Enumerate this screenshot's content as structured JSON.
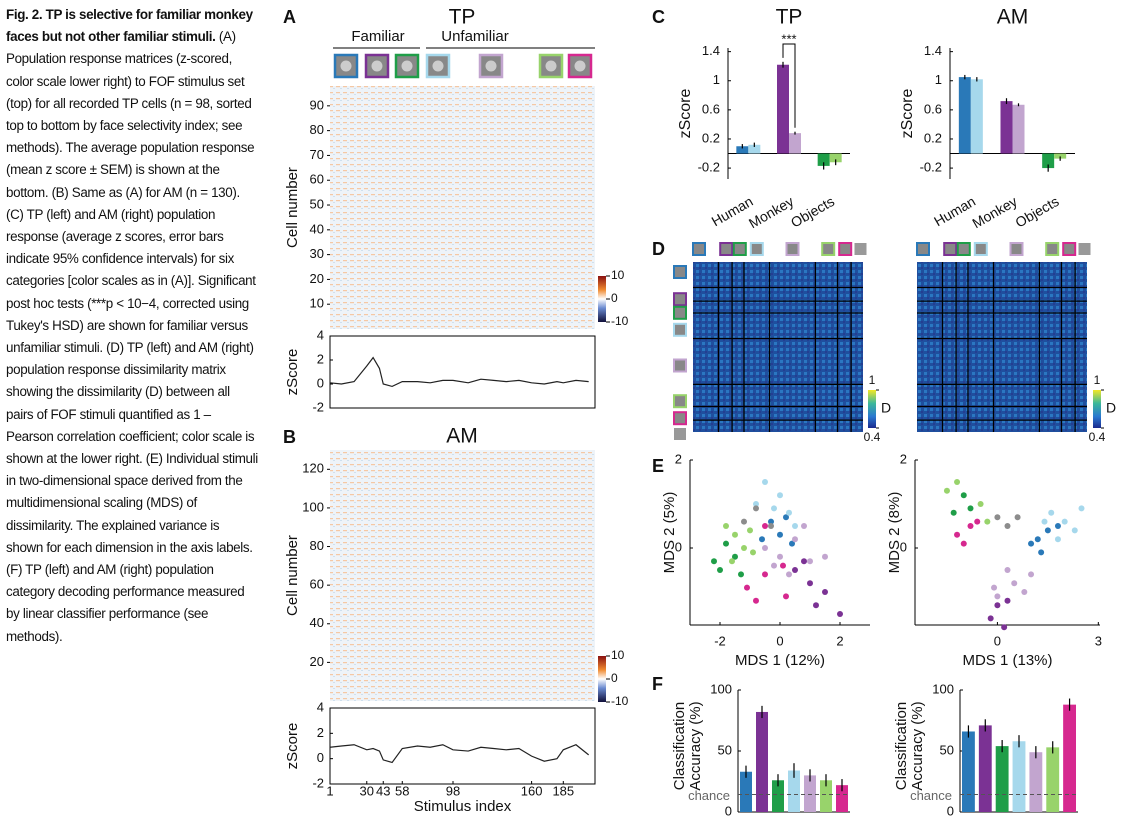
{
  "caption": {
    "title": "Fig. 2. TP is selective for familiar monkey faces but not other familiar stimuli.",
    "body": "(A) Population response matrices (z-scored, color scale lower right) to FOF stimulus set (top) for all recorded TP cells (n = 98, sorted top to bottom by face selectivity index; see methods). The average population response (mean z score ± SEM) is shown at the bottom. (B) Same as (A) for AM (n = 130). (C) TP (left) and AM (right) population response (average z scores, error bars indicate 95% confidence intervals) for six categories [color scales as in (A)]. Significant post hoc tests (***p < 10−4, corrected using Tukey's HSD) are shown for familiar versus unfamiliar stimuli. (D) TP (left) and AM (right) population response dissimilarity matrix showing the dissimilarity (D) between all pairs of FOF stimuli quantified as 1 – Pearson correlation coefficient; color scale is shown at the lower right. (E) Individual stimuli in two-dimensional space derived from the multidimensional scaling (MDS) of dissimilarity. The explained variance is shown for each dimension in the axis labels. (F) TP (left) and AM (right) population category decoding performance measured by linear classifier performance (see methods)."
  },
  "panel_A": {
    "label": "A",
    "title": "TP",
    "group_labels": [
      "Familiar",
      "Unfamiliar"
    ],
    "heatmap": {
      "ylabel": "Cell number",
      "ylim": [
        0,
        98
      ],
      "yticks": [
        10,
        20,
        30,
        40,
        50,
        60,
        70,
        80,
        90
      ],
      "colorbar_lim": [
        -10,
        10
      ],
      "colorbar_ticks": [
        10,
        0,
        -10
      ]
    },
    "trace": {
      "ylabel": "zScore",
      "ylim": [
        -2,
        4
      ],
      "yticks": [
        -2,
        0,
        2,
        4
      ],
      "xlim": [
        1,
        210
      ],
      "x": [
        1,
        10,
        20,
        30,
        35,
        40,
        43,
        50,
        58,
        70,
        80,
        90,
        98,
        110,
        120,
        130,
        140,
        150,
        160,
        170,
        180,
        185,
        195,
        205
      ],
      "values": [
        0.1,
        0,
        0.2,
        1.5,
        2.2,
        1.3,
        0,
        -0.2,
        0.2,
        0.2,
        0.1,
        0.3,
        0.3,
        0.1,
        0.4,
        0.3,
        0.2,
        0.3,
        0.1,
        0,
        0.2,
        0.1,
        0.3,
        0.2
      ]
    }
  },
  "panel_B": {
    "label": "B",
    "title": "AM",
    "heatmap": {
      "ylabel": "Cell number",
      "ylim": [
        0,
        130
      ],
      "yticks": [
        20,
        40,
        60,
        80,
        100,
        120
      ],
      "colorbar_lim": [
        -10,
        10
      ],
      "colorbar_ticks": [
        10,
        0,
        -10
      ]
    },
    "trace": {
      "ylabel": "zScore",
      "ylim": [
        -2,
        4
      ],
      "yticks": [
        -2,
        0,
        2,
        4
      ],
      "xlim": [
        1,
        210
      ],
      "xlabel": "Stimulus index",
      "xticks": [
        1,
        30,
        43,
        58,
        98,
        160,
        185
      ],
      "x": [
        1,
        10,
        20,
        30,
        35,
        40,
        43,
        50,
        58,
        70,
        80,
        90,
        98,
        110,
        120,
        130,
        140,
        150,
        160,
        170,
        180,
        185,
        195,
        205
      ],
      "values": [
        0.9,
        1,
        1.1,
        0.7,
        0.8,
        0.6,
        -0.1,
        -0.3,
        0.8,
        1,
        0.9,
        1.1,
        0.7,
        0.6,
        0.9,
        0.8,
        0.7,
        0.8,
        0.2,
        -0.2,
        0,
        0.7,
        1.1,
        0.3
      ]
    }
  },
  "panel_C": {
    "label": "C",
    "charts": [
      {
        "title": "TP",
        "ylabel": "zScore",
        "ylim": [
          -0.35,
          1.45
        ],
        "yticks": [
          -0.2,
          0.2,
          0.6,
          1,
          1.4
        ],
        "annotation": "***",
        "groups": [
          {
            "category": "Human",
            "values": [
              0.1,
              0.12
            ],
            "errors": [
              0.03,
              0.03
            ],
            "colors": [
              "#2a79b8",
              "#a6d8ec"
            ]
          },
          {
            "category": "Monkey",
            "values": [
              1.22,
              0.28
            ],
            "errors": [
              0.04,
              0.02
            ],
            "colors": [
              "#7b3294",
              "#c2a5cf"
            ]
          },
          {
            "category": "Objects",
            "values": [
              -0.17,
              -0.12
            ],
            "errors": [
              0.05,
              0.04
            ],
            "colors": [
              "#1f9e48",
              "#98d36b"
            ]
          }
        ]
      },
      {
        "title": "AM",
        "ylabel": "zScore",
        "ylim": [
          -0.35,
          1.45
        ],
        "yticks": [
          -0.2,
          0.2,
          0.6,
          1,
          1.4
        ],
        "groups": [
          {
            "category": "Human",
            "values": [
              1.05,
              1.02
            ],
            "errors": [
              0.03,
              0.03
            ],
            "colors": [
              "#2a79b8",
              "#a6d8ec"
            ]
          },
          {
            "category": "Monkey",
            "values": [
              0.72,
              0.67
            ],
            "errors": [
              0.04,
              0.02
            ],
            "colors": [
              "#7b3294",
              "#c2a5cf"
            ]
          },
          {
            "category": "Objects",
            "values": [
              -0.2,
              -0.07
            ],
            "errors": [
              0.05,
              0.03
            ],
            "colors": [
              "#1f9e48",
              "#98d36b"
            ]
          }
        ]
      }
    ]
  },
  "panel_D": {
    "label": "D",
    "matrices": [
      {
        "colorbar_label": "D",
        "colorbar_lim": [
          0.4,
          1
        ],
        "colorbar_ticks": [
          0.4,
          1
        ]
      },
      {
        "colorbar_label": "D",
        "colorbar_lim": [
          0.4,
          1
        ],
        "colorbar_ticks": [
          0.4,
          1
        ]
      }
    ]
  },
  "panel_E": {
    "label": "E",
    "plots": [
      {
        "xlabel": "MDS 1 (12%)",
        "ylabel": "MDS 2 (5%)",
        "xlim": [
          -3,
          3
        ],
        "ylim": [
          -1.75,
          2
        ],
        "xticks": [
          -2,
          0,
          2
        ],
        "yticks": [
          0,
          2
        ],
        "series": [
          {
            "color": "#2a79b8",
            "x": [
              0,
              -0.3,
              0.4,
              -0.6,
              0.2
            ],
            "y": [
              0.3,
              0.6,
              0.1,
              0.2,
              0.7
            ]
          },
          {
            "color": "#a6d8ec",
            "x": [
              -0.5,
              -0.2,
              0.3,
              0,
              -0.8,
              0.5
            ],
            "y": [
              1.5,
              0.9,
              0.8,
              1.2,
              1.0,
              0.5
            ]
          },
          {
            "color": "#7b3294",
            "x": [
              1,
              1.5,
              0.5,
              1.2,
              2,
              0.8
            ],
            "y": [
              -0.8,
              -1,
              -0.5,
              -1.3,
              -1.5,
              -0.3
            ]
          },
          {
            "color": "#c2a5cf",
            "x": [
              0,
              0.5,
              1,
              0.3,
              -0.2,
              0.8,
              1.5,
              -0.5
            ],
            "y": [
              -0.2,
              0.2,
              -0.3,
              -0.6,
              -0.4,
              0.5,
              -0.2,
              0
            ]
          },
          {
            "color": "#1f9e48",
            "x": [
              -2.2,
              -1.8,
              -1.5,
              -2,
              -1.3
            ],
            "y": [
              -0.3,
              0.1,
              -0.2,
              -0.5,
              -0.6
            ]
          },
          {
            "color": "#98d36b",
            "x": [
              -1.5,
              -1.2,
              -1.6,
              -1,
              -1.8,
              -0.9
            ],
            "y": [
              0.3,
              0,
              -0.3,
              0.4,
              0.5,
              -0.1
            ]
          },
          {
            "color": "#d6288f",
            "x": [
              -0.8,
              0.2,
              -0.5,
              0.1,
              -0.5,
              -1.1
            ],
            "y": [
              -1.2,
              -1.1,
              -0.6,
              -0.4,
              0.5,
              -0.9
            ]
          },
          {
            "color": "#8c8c8c",
            "x": [
              -0.8,
              -0.3,
              -1.2
            ],
            "y": [
              0.9,
              0.5,
              0.6
            ]
          }
        ]
      },
      {
        "xlabel": "MDS 1 (13%)",
        "ylabel": "MDS 2 (8%)",
        "xlim": [
          -2.45,
          3.05
        ],
        "ylim": [
          -1.75,
          2
        ],
        "xticks": [
          0,
          3
        ],
        "yticks": [
          0,
          2
        ],
        "series": [
          {
            "color": "#2a79b8",
            "x": [
              1.2,
              1.5,
              1,
              1.8,
              1.3
            ],
            "y": [
              0.2,
              0.4,
              0.1,
              0.5,
              -0.1
            ]
          },
          {
            "color": "#a6d8ec",
            "x": [
              2,
              1.6,
              2.3,
              1.8,
              2.5,
              1.4
            ],
            "y": [
              0.6,
              0.8,
              0.4,
              0.2,
              0.9,
              0.6
            ]
          },
          {
            "color": "#7b3294",
            "x": [
              0,
              -0.2,
              0.3,
              0.2
            ],
            "y": [
              -1.3,
              -1.6,
              -1.2,
              -1.8
            ]
          },
          {
            "color": "#c2a5cf",
            "x": [
              0.5,
              -0.1,
              0.8,
              0.3,
              1,
              0
            ],
            "y": [
              -0.8,
              -0.9,
              -1,
              -0.5,
              -0.6,
              -1.1
            ]
          },
          {
            "color": "#1f9e48",
            "x": [
              -1,
              -1.3,
              -0.8
            ],
            "y": [
              1.2,
              0.8,
              0.9
            ]
          },
          {
            "color": "#98d36b",
            "x": [
              -1.5,
              -0.5,
              -1.2,
              -0.3
            ],
            "y": [
              1.3,
              1,
              1.5,
              0.6
            ]
          },
          {
            "color": "#d6288f",
            "x": [
              -1.2,
              -0.8,
              -1,
              -0.6
            ],
            "y": [
              0.3,
              0.5,
              0.1,
              0.6
            ]
          },
          {
            "color": "#8c8c8c",
            "x": [
              0,
              0.3,
              0.6
            ],
            "y": [
              0.7,
              0.5,
              0.7
            ]
          }
        ]
      }
    ]
  },
  "panel_F": {
    "label": "F",
    "plots": [
      {
        "ylabel": [
          "Classification",
          "Accuracy (%)"
        ],
        "ylim": [
          0,
          100
        ],
        "yticks": [
          0,
          50,
          100
        ],
        "chance": 14.3,
        "chance_label": "chance",
        "colors": [
          "#2a79b8",
          "#7b3294",
          "#1f9e48",
          "#a6d8ec",
          "#c2a5cf",
          "#98d36b",
          "#d6288f"
        ],
        "values": [
          33,
          82,
          26,
          34,
          30,
          26,
          22
        ],
        "errors": [
          5,
          5,
          5,
          6,
          5,
          5,
          5
        ]
      },
      {
        "ylabel": [
          "Classification",
          "Accuracy (%)"
        ],
        "ylim": [
          0,
          100
        ],
        "yticks": [
          0,
          50,
          100
        ],
        "chance": 14.3,
        "chance_label": "chance",
        "colors": [
          "#2a79b8",
          "#7b3294",
          "#1f9e48",
          "#a6d8ec",
          "#c2a5cf",
          "#98d36b",
          "#d6288f"
        ],
        "values": [
          66,
          71,
          54,
          58,
          49,
          53,
          88
        ],
        "errors": [
          5,
          5,
          5,
          5,
          5,
          5,
          5
        ]
      }
    ]
  }
}
